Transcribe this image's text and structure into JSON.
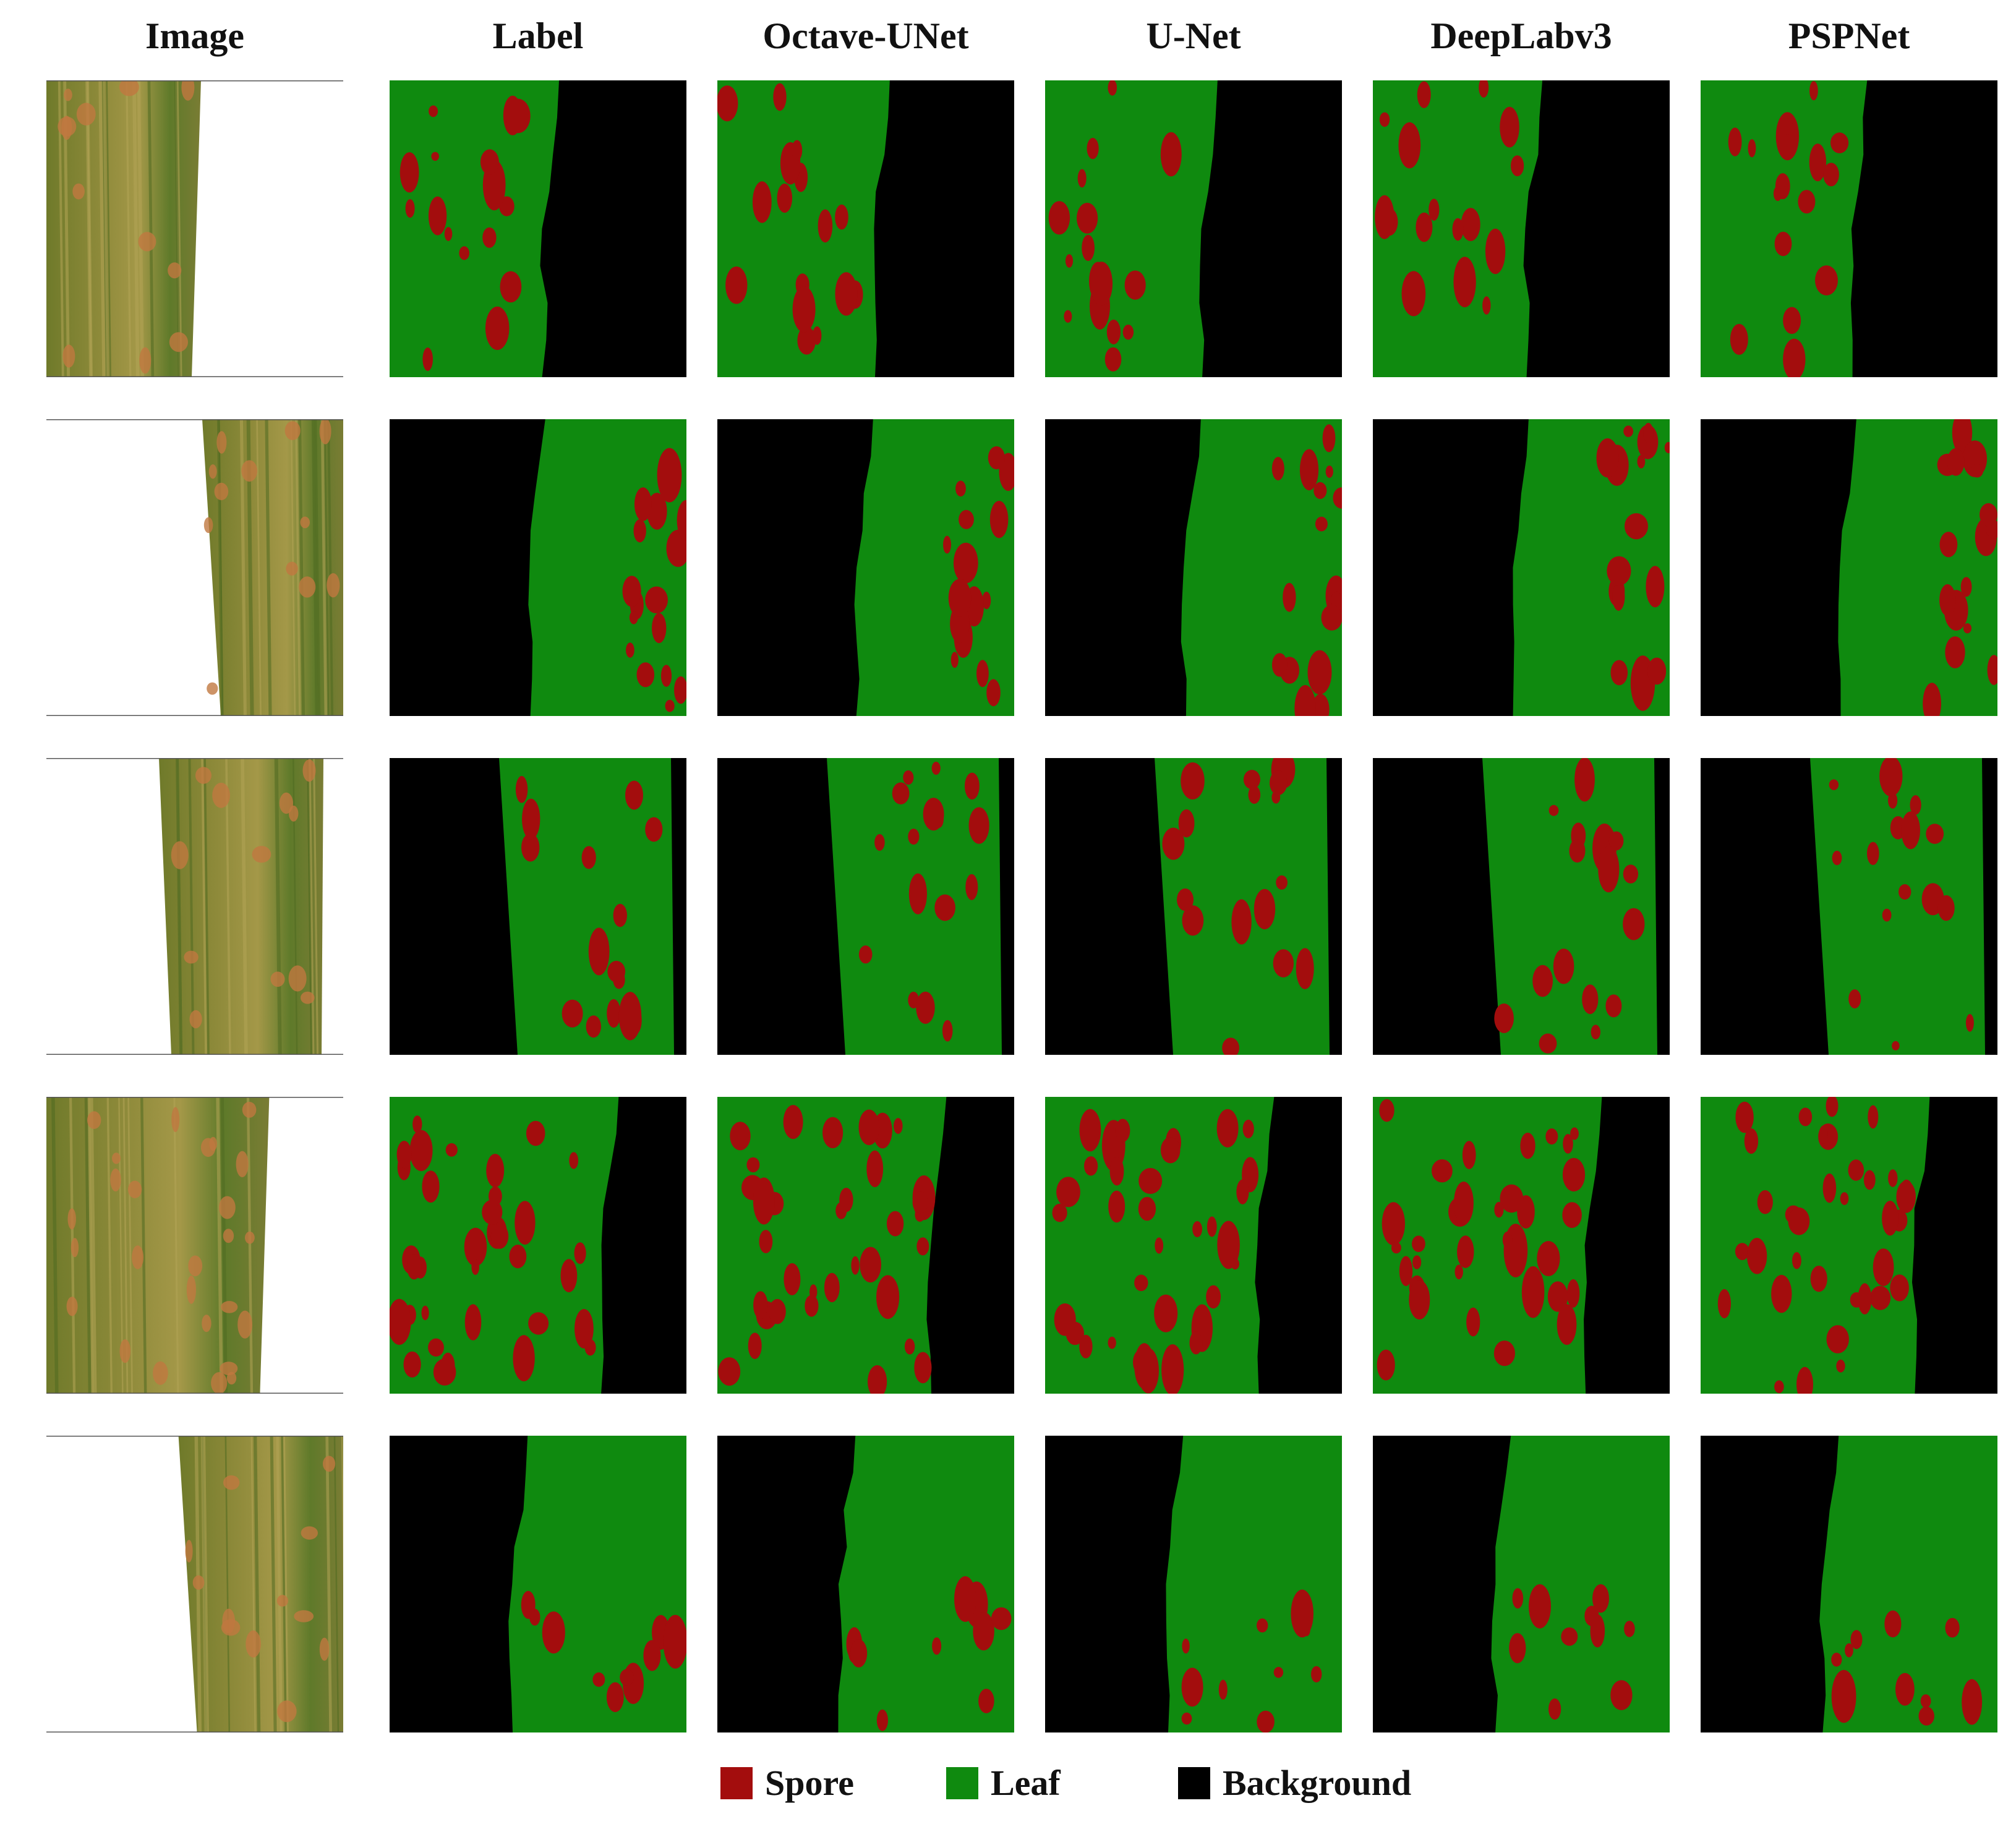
{
  "figure": {
    "column_headers": [
      "Image",
      "Label",
      "Octave-UNet",
      "U-Net",
      "DeepLabv3",
      "PSPNet"
    ],
    "rows": [
      {
        "photo": {
          "leaf_side": "left",
          "edge": 0.5
        },
        "label": {
          "leaf_side": "left",
          "edge": 0.53
        },
        "octave_unet": {
          "leaf_side": "left",
          "edge": 0.54
        },
        "unet": {
          "leaf_side": "left",
          "edge": 0.54
        },
        "deeplabv3": {
          "leaf_side": "left",
          "edge": 0.53
        },
        "pspnet": {
          "leaf_side": "left",
          "edge": 0.52
        }
      },
      {
        "photo": {
          "leaf_side": "right",
          "edge": 0.6
        },
        "label": {
          "leaf_side": "right",
          "edge": 0.6
        },
        "octave_unet": {
          "leaf_side": "right",
          "edge": 0.6
        },
        "unet": {
          "leaf_side": "right",
          "edge": 0.6
        },
        "deeplabv3": {
          "leaf_side": "right",
          "edge": 0.6
        },
        "pspnet": {
          "leaf_side": "right",
          "edge": 0.6
        }
      },
      {
        "photo": {
          "leaf_side": "center",
          "edge": 0.4
        },
        "label": {
          "leaf_side": "center",
          "edge": 0.4
        },
        "octave_unet": {
          "leaf_side": "center",
          "edge": 0.4
        },
        "unet": {
          "leaf_side": "center",
          "edge": 0.4
        },
        "deeplabv3": {
          "leaf_side": "center",
          "edge": 0.4
        },
        "pspnet": {
          "leaf_side": "center",
          "edge": 0.4
        }
      },
      {
        "photo": {
          "leaf_side": "left",
          "edge": 0.73
        },
        "label": {
          "leaf_side": "left",
          "edge": 0.73
        },
        "octave_unet": {
          "leaf_side": "left",
          "edge": 0.73
        },
        "unet": {
          "leaf_side": "left",
          "edge": 0.73
        },
        "deeplabv3": {
          "leaf_side": "left",
          "edge": 0.73
        },
        "pspnet": {
          "leaf_side": "left",
          "edge": 0.73
        }
      },
      {
        "photo": {
          "leaf_side": "right",
          "edge": 0.68
        },
        "label": {
          "leaf_side": "right",
          "edge": 0.66
        },
        "octave_unet": {
          "leaf_side": "right",
          "edge": 0.66
        },
        "unet": {
          "leaf_side": "right",
          "edge": 0.66
        },
        "deeplabv3": {
          "leaf_side": "right",
          "edge": 0.66
        },
        "pspnet": {
          "leaf_side": "right",
          "edge": 0.66
        }
      }
    ],
    "legend": [
      {
        "label": "Spore",
        "color": "#a30d0d"
      },
      {
        "label": "Leaf",
        "color": "#0f8a0f"
      },
      {
        "label": "Background",
        "color": "#000000"
      }
    ]
  }
}
